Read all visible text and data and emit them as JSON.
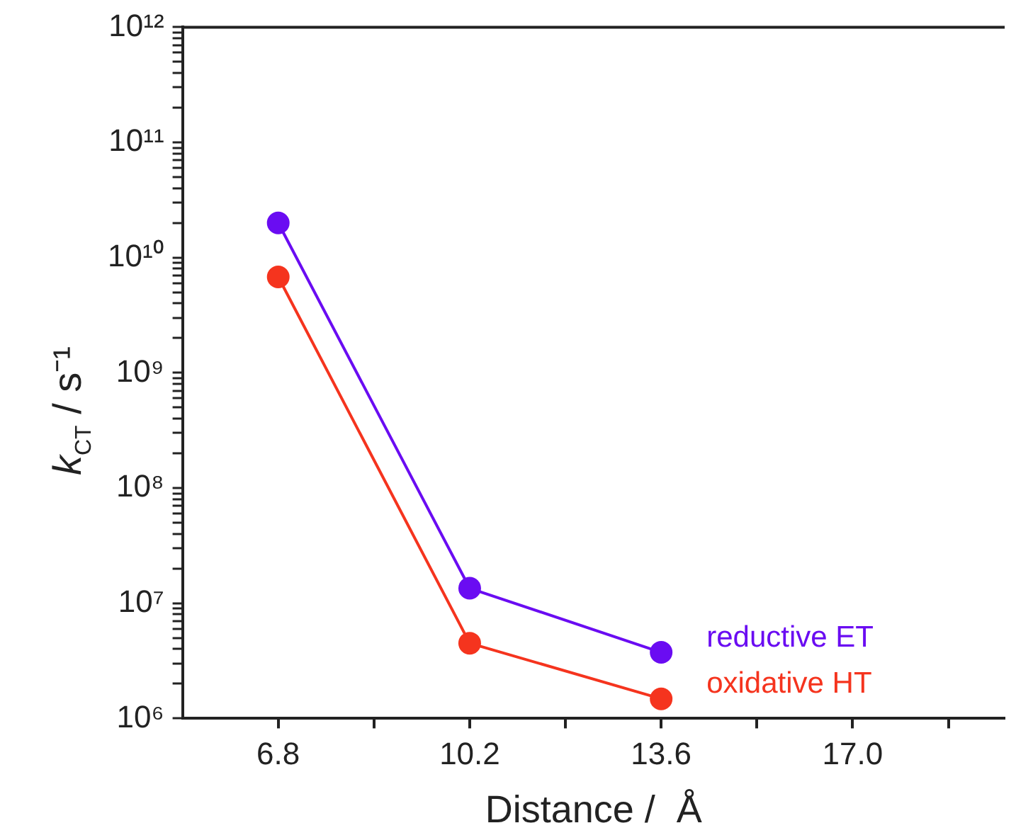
{
  "chart_data": {
    "type": "line",
    "xlabel": "Distance /  Å",
    "ylabel": "k$_{CT}$ / s⁻¹",
    "x": [
      6.8,
      10.2,
      13.6
    ],
    "series": [
      {
        "name": "reductive ET",
        "color": "#6a0cf2",
        "values": [
          20000000000.0,
          13500000.0,
          3750000.0
        ]
      },
      {
        "name": "oxidative HT",
        "color": "#f5341e",
        "values": [
          6800000000.0,
          4500000.0,
          1480000.0
        ]
      }
    ],
    "log": "y",
    "marker": "circle",
    "line_style": "solid",
    "grid": false,
    "legend": false,
    "xlim": [
      5.1,
      19.7
    ],
    "xticks": [
      6.8,
      {
        "value": 8.5,
        "label": null
      },
      10.2,
      {
        "value": 11.9,
        "label": null
      },
      13.6,
      {
        "value": 15.3,
        "label": null
      },
      "17.0",
      {
        "value": 18.7,
        "label": null
      }
    ],
    "ylim": [
      1000000.0,
      1000000000000.0
    ],
    "yticks": [
      {
        "value": 1000000.0,
        "label": "10⁶"
      },
      {
        "value": 2000000.0,
        "label": null
      },
      {
        "value": 3000000.0,
        "label": null
      },
      {
        "value": 4000000.0,
        "label": null
      },
      {
        "value": 5000000.0,
        "label": null
      },
      {
        "value": 6000000.0,
        "label": null
      },
      {
        "value": 7000000.0,
        "label": null
      },
      {
        "value": 8000000.0,
        "label": null
      },
      {
        "value": 9000000.0,
        "label": null
      },
      {
        "value": 10000000.0,
        "label": "10⁷"
      },
      {
        "value": 20000000.0,
        "label": null
      },
      {
        "value": 30000000.0,
        "label": null
      },
      {
        "value": 40000000.0,
        "label": null
      },
      {
        "value": 50000000.0,
        "label": null
      },
      {
        "value": 60000000.0,
        "label": null
      },
      {
        "value": 70000000.0,
        "label": null
      },
      {
        "value": 80000000.0,
        "label": null
      },
      {
        "value": 90000000.0,
        "label": null
      },
      {
        "value": 100000000.0,
        "label": "10⁸"
      },
      {
        "value": 200000000.0,
        "label": null
      },
      {
        "value": 300000000.0,
        "label": null
      },
      {
        "value": 400000000.0,
        "label": null
      },
      {
        "value": 500000000.0,
        "label": null
      },
      {
        "value": 600000000.0,
        "label": null
      },
      {
        "value": 700000000.0,
        "label": null
      },
      {
        "value": 800000000.0,
        "label": null
      },
      {
        "value": 900000000.0,
        "label": null
      },
      {
        "value": 1000000000.0,
        "label": "10⁹"
      },
      {
        "value": 2000000000.0,
        "label": null
      },
      {
        "value": 3000000000.0,
        "label": null
      },
      {
        "value": 4000000000.0,
        "label": null
      },
      {
        "value": 5000000000.0,
        "label": null
      },
      {
        "value": 6000000000.0,
        "label": null
      },
      {
        "value": 7000000000.0,
        "label": null
      },
      {
        "value": 8000000000.0,
        "label": null
      },
      {
        "value": 9000000000.0,
        "label": null
      },
      {
        "value": 10000000000.0,
        "label": "10¹⁰"
      },
      {
        "value": 20000000000.0,
        "label": null
      },
      {
        "value": 30000000000.0,
        "label": null
      },
      {
        "value": 40000000000.0,
        "label": null
      },
      {
        "value": 50000000000.0,
        "label": null
      },
      {
        "value": 60000000000.0,
        "label": null
      },
      {
        "value": 70000000000.0,
        "label": null
      },
      {
        "value": 80000000000.0,
        "label": null
      },
      {
        "value": 90000000000.0,
        "label": null
      },
      {
        "value": 100000000000.0,
        "label": "10¹¹"
      },
      {
        "value": 200000000000.0,
        "label": null
      },
      {
        "value": 300000000000.0,
        "label": null
      },
      {
        "value": 400000000000.0,
        "label": null
      },
      {
        "value": 500000000000.0,
        "label": null
      },
      {
        "value": 600000000000.0,
        "label": null
      },
      {
        "value": 700000000000.0,
        "label": null
      },
      {
        "value": 800000000000.0,
        "label": null
      },
      {
        "value": 900000000000.0,
        "label": null
      },
      {
        "value": 1000000000000.0,
        "label": "10¹²"
      }
    ]
  }
}
